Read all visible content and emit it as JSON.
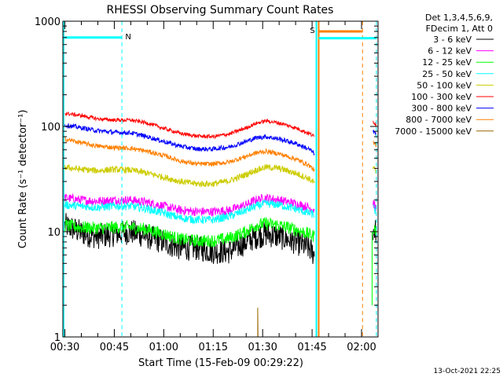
{
  "chart_data": {
    "type": "line",
    "title": "RHESSI Observing Summary Count Rates",
    "xlabel": "Start Time (15-Feb-09 00:29:22)",
    "ylabel": "Count Rate (s⁻¹ detector⁻¹)",
    "ylog": true,
    "ylim": [
      1,
      1000
    ],
    "xlim_minutes": [
      29.4,
      125
    ],
    "x_ticks": [
      {
        "label": "00:30",
        "minutes": 30
      },
      {
        "label": "00:45",
        "minutes": 45
      },
      {
        "label": "01:00",
        "minutes": 60
      },
      {
        "label": "01:15",
        "minutes": 75
      },
      {
        "label": "01:30",
        "minutes": 90
      },
      {
        "label": "01:45",
        "minutes": 105
      },
      {
        "label": "02:00",
        "minutes": 120
      }
    ],
    "y_ticks": [
      {
        "label": "1",
        "value": 1
      },
      {
        "label": "10",
        "value": 10
      },
      {
        "label": "100",
        "value": 100
      },
      {
        "label": "1000",
        "value": 1000
      }
    ],
    "legend_header": [
      "Det 1,3,4,5,6,9,",
      "FDecim 1, Att 0"
    ],
    "legend_position": "right",
    "series": [
      {
        "name": "3 - 6 keV",
        "color": "#000000",
        "x": [
          30,
          33,
          36,
          40,
          45,
          50,
          55,
          60,
          65,
          70,
          75,
          80,
          85,
          88,
          91,
          95,
          100,
          104,
          105.8
        ],
        "y": [
          11.5,
          10.5,
          9.5,
          9,
          9.5,
          10,
          9,
          8,
          7,
          7,
          6.5,
          6.5,
          8,
          9,
          9.5,
          9,
          8,
          7,
          6
        ]
      },
      {
        "name": "6 - 12 keV",
        "color": "#ff00ff",
        "x": [
          30,
          35,
          40,
          45,
          50,
          55,
          60,
          65,
          70,
          75,
          80,
          85,
          88,
          91,
          95,
          100,
          104,
          105.8
        ],
        "y": [
          21,
          20,
          19.5,
          20,
          20,
          19,
          17.5,
          16,
          15.5,
          15.5,
          16,
          18,
          20,
          21,
          20,
          18.5,
          17,
          16
        ]
      },
      {
        "name": "12 - 25 keV",
        "color": "#00ff00",
        "x": [
          30,
          35,
          40,
          45,
          50,
          55,
          60,
          65,
          70,
          75,
          80,
          85,
          88,
          91,
          95,
          100,
          104,
          105.8
        ],
        "y": [
          11.5,
          11,
          10.8,
          11,
          11,
          10.5,
          9.5,
          8.5,
          8.2,
          8.2,
          8.7,
          10,
          11.5,
          12,
          11.5,
          10.5,
          9.5,
          9
        ]
      },
      {
        "name": "25 - 50 keV",
        "color": "#00ffff",
        "x": [
          30,
          35,
          40,
          45,
          50,
          55,
          60,
          65,
          70,
          75,
          80,
          85,
          88,
          91,
          95,
          100,
          104,
          105.8
        ],
        "y": [
          18,
          17.5,
          17,
          17.5,
          17.5,
          16.5,
          15,
          13.5,
          13,
          13,
          14,
          16,
          17.5,
          18.5,
          18,
          16.5,
          15,
          14.5
        ]
      },
      {
        "name": "50 - 100 keV",
        "color": "#cccc00",
        "x": [
          30,
          35,
          40,
          45,
          50,
          55,
          60,
          65,
          70,
          75,
          80,
          85,
          88,
          91,
          95,
          100,
          104,
          105.8
        ],
        "y": [
          41,
          39,
          38,
          39,
          38.5,
          36,
          33,
          30,
          28.5,
          28.5,
          30.5,
          35,
          38.5,
          41,
          40,
          36,
          32,
          29
        ]
      },
      {
        "name": "100 - 300 keV",
        "color": "#ff0000",
        "x": [
          30,
          35,
          40,
          45,
          50,
          55,
          60,
          65,
          70,
          75,
          80,
          85,
          88,
          91,
          95,
          100,
          104,
          105.8
        ],
        "y": [
          133,
          127,
          118,
          115,
          115,
          108,
          96,
          86,
          81,
          80,
          85,
          97,
          107,
          113,
          108,
          97,
          86,
          80
        ]
      },
      {
        "name": "300 - 800 keV",
        "color": "#0000ff",
        "x": [
          30,
          35,
          40,
          45,
          50,
          55,
          60,
          65,
          70,
          75,
          80,
          85,
          88,
          91,
          95,
          100,
          104,
          105.8
        ],
        "y": [
          103,
          97,
          91,
          88,
          87,
          80,
          72,
          65,
          61,
          61,
          64,
          72,
          78,
          80,
          76,
          69,
          61,
          55
        ]
      },
      {
        "name": "800 - 7000 keV",
        "color": "#ff8000",
        "x": [
          30,
          35,
          40,
          45,
          50,
          55,
          60,
          65,
          70,
          75,
          80,
          85,
          88,
          91,
          95,
          100,
          104,
          105.8
        ],
        "y": [
          76,
          70,
          65,
          63,
          62,
          58,
          53,
          47,
          44,
          44,
          46,
          52,
          56,
          58,
          55,
          49,
          43,
          38
        ]
      },
      {
        "name": "7000 - 15000 keV",
        "color": "#996600",
        "x": [
          88.5,
          88.5,
          88.6
        ],
        "y": [
          1,
          1.9,
          1
        ]
      }
    ],
    "after_gap": {
      "x": [
        123.5,
        124.5
      ],
      "values": {
        "3 - 6 keV": [
          10.5,
          10
        ],
        "6 - 12 keV": [
          19,
          16
        ],
        "12 - 25 keV": [
          11,
          10
        ],
        "25 - 50 keV": [
          17,
          15
        ],
        "50 - 100 keV": [
          40,
          37
        ],
        "100 - 300 keV": [
          112,
          103
        ],
        "300 - 800 keV": [
          90,
          83
        ],
        "800 - 7000 keV": [
          70,
          64
        ]
      }
    },
    "flags": [
      {
        "label": "N",
        "color": "#00ffff",
        "start_minutes": 29.6,
        "end_minutes": 47.3,
        "level": 700
      },
      {
        "label": "S",
        "color": "#ff8000",
        "start_minutes": 107,
        "end_minutes": 120.3,
        "level": 800
      },
      {
        "label": "",
        "color": "#00ffff",
        "start_minutes": 107,
        "end_minutes": 124.5,
        "level": 690
      }
    ],
    "vlines": [
      {
        "minutes": 47.3,
        "color": "#00ffff",
        "style": "dashed"
      },
      {
        "minutes": 106.3,
        "color": "#00ffff",
        "style": "solid"
      },
      {
        "minutes": 107,
        "color": "#ff8000",
        "style": "solid"
      },
      {
        "minutes": 120.3,
        "color": "#ff8000",
        "style": "dashed"
      },
      {
        "minutes": 124.5,
        "color": "#00ffff",
        "style": "dashed"
      },
      {
        "minutes": 29.6,
        "color": "#00ffff",
        "style": "solid"
      }
    ]
  },
  "timestamp": "13-Oct-2021 22:25"
}
